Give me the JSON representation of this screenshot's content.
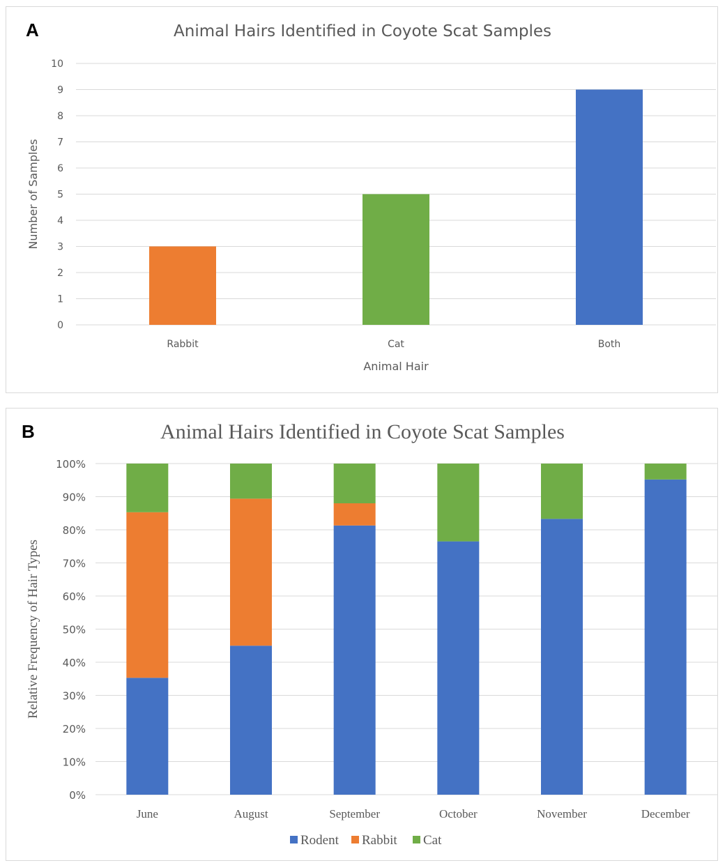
{
  "chart_data": [
    {
      "panel_label": "A",
      "type": "bar",
      "title": "Animal Hairs Identified in Coyote Scat Samples",
      "xlabel": "Animal Hair",
      "ylabel": "Number of Samples",
      "categories": [
        "Rabbit",
        "Cat",
        "Both"
      ],
      "values": [
        3,
        5,
        9
      ],
      "colors": [
        "#ED7D31",
        "#70AD47",
        "#4472C4"
      ],
      "ylim": [
        0,
        10
      ],
      "yticks": [
        0,
        1,
        2,
        3,
        4,
        5,
        6,
        7,
        8,
        9,
        10
      ],
      "grid": true
    },
    {
      "panel_label": "B",
      "type": "bar",
      "stacked": true,
      "title": "Animal Hairs Identified in Coyote Scat Samples",
      "xlabel": "",
      "ylabel": "Relative Frequency of Hair Types",
      "categories": [
        "June",
        "August",
        "September",
        "October",
        "November",
        "December"
      ],
      "series": [
        {
          "name": "Rodent",
          "color": "#4472C4",
          "values": [
            35.3,
            45,
            81.3,
            76.5,
            83.3,
            95.2
          ]
        },
        {
          "name": "Rabbit",
          "color": "#ED7D31",
          "values": [
            50,
            44.4,
            6.7,
            0,
            0,
            0
          ]
        },
        {
          "name": "Cat",
          "color": "#70AD47",
          "values": [
            14.7,
            10.6,
            12,
            23.5,
            16.7,
            4.8
          ]
        }
      ],
      "ylim": [
        0,
        100
      ],
      "yticks": [
        "0%",
        "10%",
        "20%",
        "30%",
        "40%",
        "50%",
        "60%",
        "70%",
        "80%",
        "90%",
        "100%"
      ],
      "grid": true,
      "legend_position": "bottom"
    }
  ]
}
